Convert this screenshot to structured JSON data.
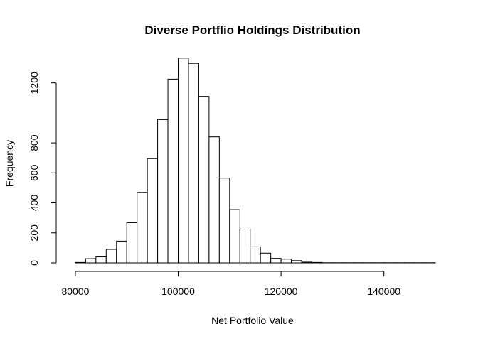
{
  "chart_data": {
    "type": "bar",
    "title": "Diverse Portflio Holdings Distribution",
    "xlabel": "Net Portfolio Value",
    "ylabel": "Frequency",
    "x_ticks": [
      80000,
      100000,
      120000,
      140000
    ],
    "y_ticks": [
      0,
      200,
      400,
      600,
      800,
      1200
    ],
    "xlim": [
      76000,
      150000
    ],
    "ylim": [
      0,
      1350
    ],
    "bin_width": 2000,
    "bins": [
      {
        "start": 80000,
        "end": 82000,
        "count": 3
      },
      {
        "start": 82000,
        "end": 84000,
        "count": 28
      },
      {
        "start": 84000,
        "end": 86000,
        "count": 40
      },
      {
        "start": 86000,
        "end": 88000,
        "count": 90
      },
      {
        "start": 88000,
        "end": 90000,
        "count": 145
      },
      {
        "start": 90000,
        "end": 92000,
        "count": 268
      },
      {
        "start": 92000,
        "end": 94000,
        "count": 470
      },
      {
        "start": 94000,
        "end": 96000,
        "count": 695
      },
      {
        "start": 96000,
        "end": 98000,
        "count": 955
      },
      {
        "start": 98000,
        "end": 100000,
        "count": 1225
      },
      {
        "start": 100000,
        "end": 102000,
        "count": 1365
      },
      {
        "start": 102000,
        "end": 104000,
        "count": 1330
      },
      {
        "start": 104000,
        "end": 106000,
        "count": 1110
      },
      {
        "start": 106000,
        "end": 108000,
        "count": 840
      },
      {
        "start": 108000,
        "end": 110000,
        "count": 565
      },
      {
        "start": 110000,
        "end": 112000,
        "count": 355
      },
      {
        "start": 112000,
        "end": 114000,
        "count": 225
      },
      {
        "start": 114000,
        "end": 116000,
        "count": 107
      },
      {
        "start": 116000,
        "end": 118000,
        "count": 65
      },
      {
        "start": 118000,
        "end": 120000,
        "count": 30
      },
      {
        "start": 120000,
        "end": 122000,
        "count": 25
      },
      {
        "start": 122000,
        "end": 124000,
        "count": 15
      },
      {
        "start": 124000,
        "end": 126000,
        "count": 5
      },
      {
        "start": 126000,
        "end": 128000,
        "count": 3
      },
      {
        "start": 128000,
        "end": 130000,
        "count": 1
      },
      {
        "start": 130000,
        "end": 132000,
        "count": 1
      },
      {
        "start": 132000,
        "end": 134000,
        "count": 1
      },
      {
        "start": 134000,
        "end": 136000,
        "count": 1
      },
      {
        "start": 136000,
        "end": 138000,
        "count": 1
      },
      {
        "start": 138000,
        "end": 140000,
        "count": 1
      },
      {
        "start": 140000,
        "end": 142000,
        "count": 1
      },
      {
        "start": 142000,
        "end": 144000,
        "count": 1
      },
      {
        "start": 144000,
        "end": 146000,
        "count": 1
      },
      {
        "start": 146000,
        "end": 148000,
        "count": 1
      },
      {
        "start": 148000,
        "end": 150000,
        "count": 1
      }
    ],
    "grid": false,
    "legend": "none"
  }
}
